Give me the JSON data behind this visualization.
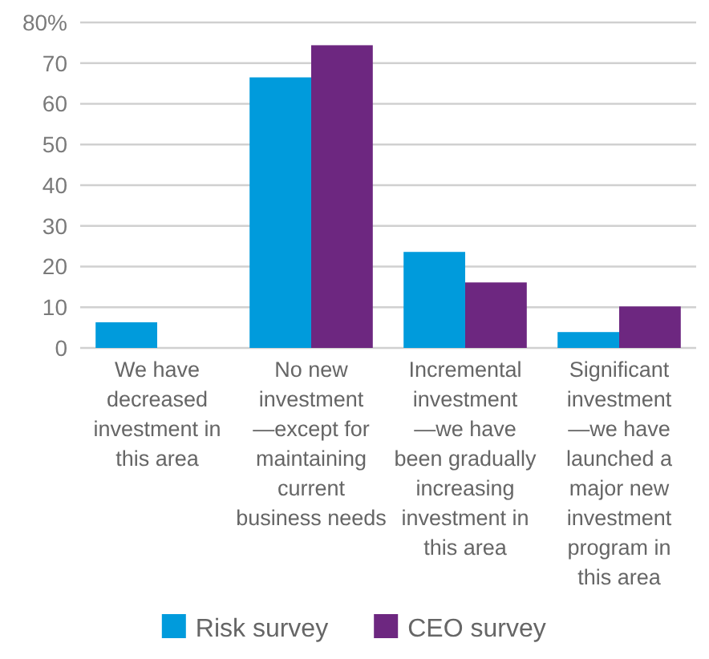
{
  "chart_data": {
    "type": "bar",
    "categories": [
      "We have\ndecreased\ninvestment in\nthis area",
      "No new\ninvestment\n—except for\nmaintaining\ncurrent\nbusiness needs",
      "Incremental\ninvestment\n—we have\nbeen gradually\nincreasing\ninvestment in\nthis area",
      "Significant\ninvestment\n—we have\nlaunched a\nmajor new\ninvestment\nprogram in\nthis area"
    ],
    "series": [
      {
        "name": "Risk survey",
        "color": "#009bdc",
        "values": [
          6.3,
          66.5,
          23.6,
          3.9
        ]
      },
      {
        "name": "CEO survey",
        "color": "#6d2780",
        "values": [
          0,
          74.4,
          16.1,
          10.2
        ]
      }
    ],
    "ylim": [
      0,
      80
    ],
    "yticks": [
      0,
      10,
      20,
      30,
      40,
      50,
      60,
      70,
      {
        "value": 80,
        "label": "80%"
      }
    ],
    "grid": "y",
    "legend": "bottom"
  }
}
